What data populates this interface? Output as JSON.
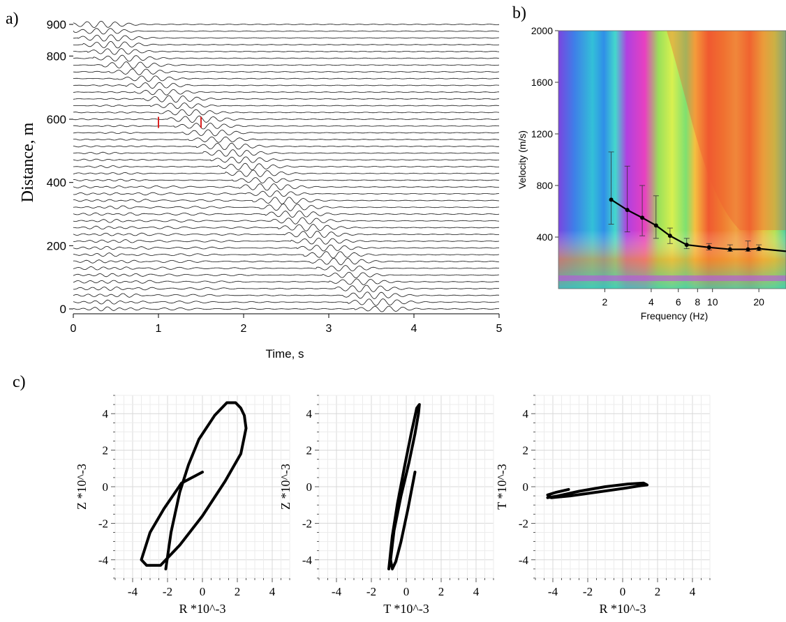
{
  "panel_labels": {
    "a": "a)",
    "b": "b)",
    "c": "c)"
  },
  "chart_data": [
    {
      "id": "a",
      "type": "line",
      "xlabel": "Time, s",
      "ylabel": "Distance, m",
      "xlim": [
        0,
        5
      ],
      "ylim": [
        0,
        900
      ],
      "xticks": [
        "0",
        "1",
        "2",
        "3",
        "4",
        "5"
      ],
      "yticks": [
        "0",
        "200",
        "400",
        "600",
        "800",
        "900"
      ],
      "trace_count": 43,
      "arrival_time_at_distance": [
        {
          "distance": 900,
          "time": 0.05
        },
        {
          "distance": 800,
          "time": 0.3
        },
        {
          "distance": 600,
          "time": 1.2
        },
        {
          "distance": 400,
          "time": 2.0
        },
        {
          "distance": 200,
          "time": 2.7
        },
        {
          "distance": 0,
          "time": 3.4
        }
      ],
      "picks": [
        {
          "distance": 590,
          "time": 1.0,
          "color": "#dd2222"
        },
        {
          "distance": 590,
          "time": 1.5,
          "color": "#dd2222"
        }
      ]
    },
    {
      "id": "b",
      "type": "heatmap",
      "xlabel": "Frequency (Hz)",
      "ylabel": "Velocity (m/s)",
      "xscale": "log",
      "xlim": [
        1,
        30
      ],
      "ylim": [
        0,
        2000
      ],
      "xticks": [
        "2",
        "4",
        "6",
        "8",
        "10",
        "20"
      ],
      "yticks": [
        "400",
        "800",
        "1200",
        "1600",
        "2000"
      ],
      "dispersion_curve": {
        "frequency": [
          2.2,
          2.8,
          3.5,
          4.3,
          5.3,
          6.8,
          9.5,
          13,
          17,
          20,
          30
        ],
        "velocity": [
          690,
          610,
          550,
          490,
          410,
          340,
          320,
          305,
          305,
          310,
          290
        ],
        "error_low": [
          500,
          440,
          410,
          390,
          350,
          310,
          300,
          290,
          290,
          295,
          280
        ],
        "error_high": [
          1060,
          950,
          800,
          720,
          470,
          390,
          350,
          340,
          370,
          340,
          310
        ]
      }
    },
    {
      "id": "c1",
      "type": "line",
      "xlabel": "R *10^-3",
      "ylabel": "Z *10^-3",
      "xlim": [
        -5,
        5
      ],
      "ylim": [
        -5,
        5
      ],
      "xticks": [
        "-4",
        "-2",
        "0",
        "2",
        "4"
      ],
      "yticks": [
        "-4",
        "-2",
        "0",
        "2",
        "4"
      ],
      "points": [
        [
          0.0,
          0.8
        ],
        [
          -1.2,
          0.2
        ],
        [
          -2.2,
          -1.2
        ],
        [
          -3.0,
          -2.5
        ],
        [
          -3.5,
          -4.0
        ],
        [
          -3.2,
          -4.3
        ],
        [
          -2.4,
          -4.3
        ],
        [
          -1.3,
          -3.2
        ],
        [
          0.0,
          -1.6
        ],
        [
          1.3,
          0.3
        ],
        [
          2.2,
          1.8
        ],
        [
          2.5,
          3.2
        ],
        [
          2.4,
          3.9
        ],
        [
          2.2,
          4.3
        ],
        [
          1.9,
          4.6
        ],
        [
          1.4,
          4.6
        ],
        [
          0.7,
          3.9
        ],
        [
          -0.2,
          2.6
        ],
        [
          -0.8,
          1.2
        ],
        [
          -1.3,
          -0.3
        ],
        [
          -1.8,
          -2.5
        ],
        [
          -2.1,
          -4.5
        ]
      ]
    },
    {
      "id": "c2",
      "type": "line",
      "xlabel": "T *10^-3",
      "ylabel": "Z *10^-3",
      "xlim": [
        -5,
        5
      ],
      "ylim": [
        -5,
        5
      ],
      "xticks": [
        "-4",
        "-2",
        "0",
        "2",
        "4"
      ],
      "yticks": [
        "-4",
        "-2",
        "0",
        "2",
        "4"
      ],
      "points": [
        [
          0.5,
          0.8
        ],
        [
          0.1,
          -1.2
        ],
        [
          -0.3,
          -3.0
        ],
        [
          -0.6,
          -4.1
        ],
        [
          -0.8,
          -4.5
        ],
        [
          -0.9,
          -4.0
        ],
        [
          -0.7,
          -2.4
        ],
        [
          -0.3,
          -0.5
        ],
        [
          0.15,
          1.3
        ],
        [
          0.5,
          2.9
        ],
        [
          0.7,
          4.0
        ],
        [
          0.75,
          4.5
        ],
        [
          0.6,
          4.3
        ],
        [
          0.3,
          3.0
        ],
        [
          -0.1,
          1.1
        ],
        [
          -0.5,
          -0.9
        ],
        [
          -0.8,
          -2.7
        ],
        [
          -1.0,
          -4.5
        ]
      ]
    },
    {
      "id": "c3",
      "type": "line",
      "xlabel": "R *10^-3",
      "ylabel": "T *10^-3",
      "xlim": [
        -5,
        5
      ],
      "ylim": [
        -5,
        5
      ],
      "xticks": [
        "-4",
        "-2",
        "0",
        "2",
        "4"
      ],
      "yticks": [
        "-4",
        "-2",
        "0",
        "2",
        "4"
      ],
      "points": [
        [
          -3.1,
          -0.15
        ],
        [
          -3.8,
          -0.3
        ],
        [
          -4.3,
          -0.45
        ],
        [
          -4.1,
          -0.6
        ],
        [
          -3.0,
          -0.5
        ],
        [
          -1.5,
          -0.3
        ],
        [
          0.0,
          -0.1
        ],
        [
          1.0,
          0.05
        ],
        [
          1.4,
          0.1
        ],
        [
          1.2,
          0.2
        ],
        [
          0.3,
          0.15
        ],
        [
          -1.0,
          0.0
        ],
        [
          -2.5,
          -0.25
        ],
        [
          -3.7,
          -0.5
        ],
        [
          -4.3,
          -0.6
        ]
      ]
    }
  ]
}
